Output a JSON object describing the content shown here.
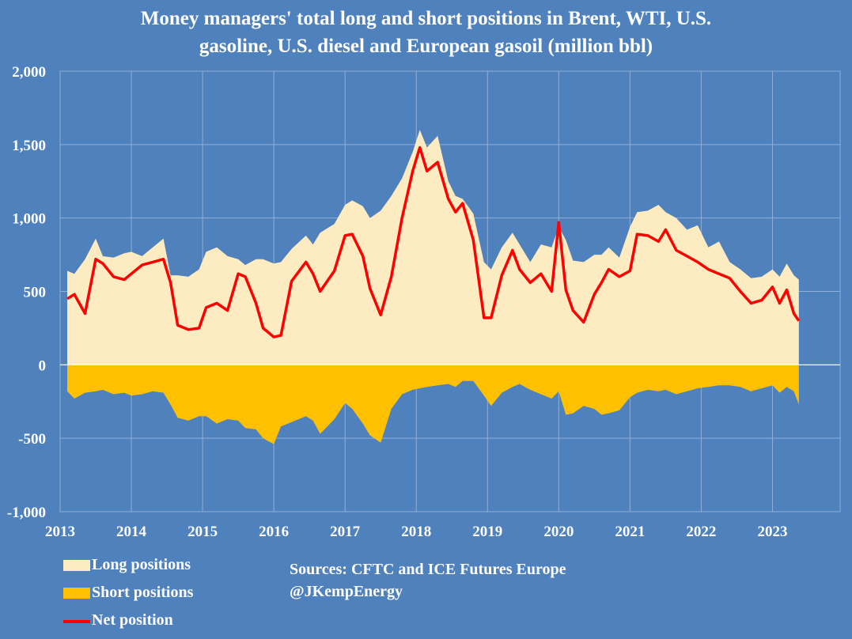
{
  "chart_data": {
    "type": "area",
    "title_lines": [
      "Money managers' total long and short positions in Brent, WTI, U.S.",
      "gasoline, U.S. diesel and European gasoil  (million bbl)"
    ],
    "xlabel": "",
    "ylabel": "",
    "xlim": [
      2013,
      2023.95
    ],
    "ylim": [
      -1000,
      2000
    ],
    "x_ticks": [
      "2013",
      "2014",
      "2015",
      "2016",
      "2017",
      "2018",
      "2019",
      "2020",
      "2021",
      "2022",
      "2023"
    ],
    "y_ticks": [
      "2,000",
      "1,500",
      "1,000",
      "500",
      "0",
      "-500",
      "-1,000"
    ],
    "grid": true,
    "colors": {
      "background": "#4f81bd",
      "long": "#fdebc2",
      "short": "#ffc000",
      "net": "#ff0000",
      "grid": "#8fb0d8"
    },
    "x": [
      2013.1,
      2013.2,
      2013.35,
      2013.5,
      2013.6,
      2013.75,
      2013.9,
      2014.0,
      2014.15,
      2014.3,
      2014.45,
      2014.55,
      2014.65,
      2014.8,
      2014.95,
      2015.05,
      2015.2,
      2015.35,
      2015.5,
      2015.6,
      2015.75,
      2015.85,
      2016.0,
      2016.1,
      2016.25,
      2016.45,
      2016.55,
      2016.65,
      2016.85,
      2017.0,
      2017.1,
      2017.25,
      2017.35,
      2017.5,
      2017.65,
      2017.8,
      2017.95,
      2018.05,
      2018.15,
      2018.3,
      2018.45,
      2018.55,
      2018.65,
      2018.8,
      2018.95,
      2019.05,
      2019.2,
      2019.35,
      2019.45,
      2019.6,
      2019.75,
      2019.9,
      2020.0,
      2020.1,
      2020.2,
      2020.35,
      2020.5,
      2020.6,
      2020.7,
      2020.85,
      2021.0,
      2021.1,
      2021.25,
      2021.4,
      2021.5,
      2021.65,
      2021.8,
      2021.95,
      2022.1,
      2022.25,
      2022.4,
      2022.55,
      2022.7,
      2022.85,
      2023.0,
      2023.1,
      2023.2,
      2023.3,
      2023.37
    ],
    "series": [
      {
        "name": "Long positions",
        "values": [
          640,
          620,
          720,
          860,
          740,
          730,
          760,
          770,
          740,
          800,
          860,
          610,
          610,
          600,
          650,
          770,
          800,
          740,
          720,
          680,
          720,
          720,
          690,
          700,
          790,
          880,
          820,
          900,
          960,
          1090,
          1120,
          1080,
          1000,
          1050,
          1150,
          1270,
          1450,
          1600,
          1480,
          1560,
          1250,
          1150,
          1130,
          1030,
          700,
          650,
          800,
          900,
          820,
          700,
          820,
          800,
          940,
          850,
          710,
          700,
          750,
          750,
          800,
          730,
          940,
          1040,
          1050,
          1090,
          1040,
          1000,
          920,
          950,
          800,
          840,
          700,
          650,
          590,
          600,
          650,
          600,
          690,
          610,
          580
        ]
      },
      {
        "name": "Short positions",
        "values": [
          -180,
          -230,
          -190,
          -180,
          -170,
          -200,
          -190,
          -210,
          -200,
          -180,
          -190,
          -270,
          -360,
          -380,
          -350,
          -350,
          -400,
          -370,
          -380,
          -430,
          -440,
          -500,
          -540,
          -420,
          -390,
          -350,
          -380,
          -470,
          -370,
          -260,
          -300,
          -400,
          -480,
          -530,
          -300,
          -200,
          -170,
          -160,
          -150,
          -140,
          -130,
          -150,
          -110,
          -110,
          -210,
          -280,
          -190,
          -150,
          -130,
          -170,
          -200,
          -230,
          -180,
          -340,
          -330,
          -280,
          -300,
          -340,
          -330,
          -310,
          -220,
          -190,
          -170,
          -180,
          -170,
          -200,
          -180,
          -160,
          -150,
          -140,
          -140,
          -150,
          -180,
          -160,
          -140,
          -190,
          -150,
          -180,
          -270
        ]
      },
      {
        "name": "Net position",
        "values": [
          450,
          480,
          350,
          720,
          690,
          600,
          580,
          620,
          680,
          700,
          720,
          560,
          270,
          240,
          250,
          390,
          420,
          370,
          620,
          600,
          420,
          250,
          190,
          200,
          570,
          700,
          620,
          500,
          640,
          880,
          890,
          740,
          520,
          340,
          600,
          1000,
          1320,
          1480,
          1320,
          1380,
          1130,
          1040,
          1100,
          850,
          320,
          320,
          610,
          780,
          650,
          560,
          620,
          500,
          970,
          510,
          370,
          290,
          480,
          560,
          650,
          600,
          640,
          890,
          880,
          840,
          920,
          780,
          740,
          700,
          650,
          620,
          590,
          500,
          420,
          440,
          530,
          420,
          510,
          350,
          300
        ]
      }
    ]
  },
  "legend": {
    "long": "Long positions",
    "short": "Short positions",
    "net": "Net position"
  },
  "sources": {
    "line1": "Sources: CFTC and ICE Futures Europe",
    "line2": "@JKempEnergy"
  }
}
